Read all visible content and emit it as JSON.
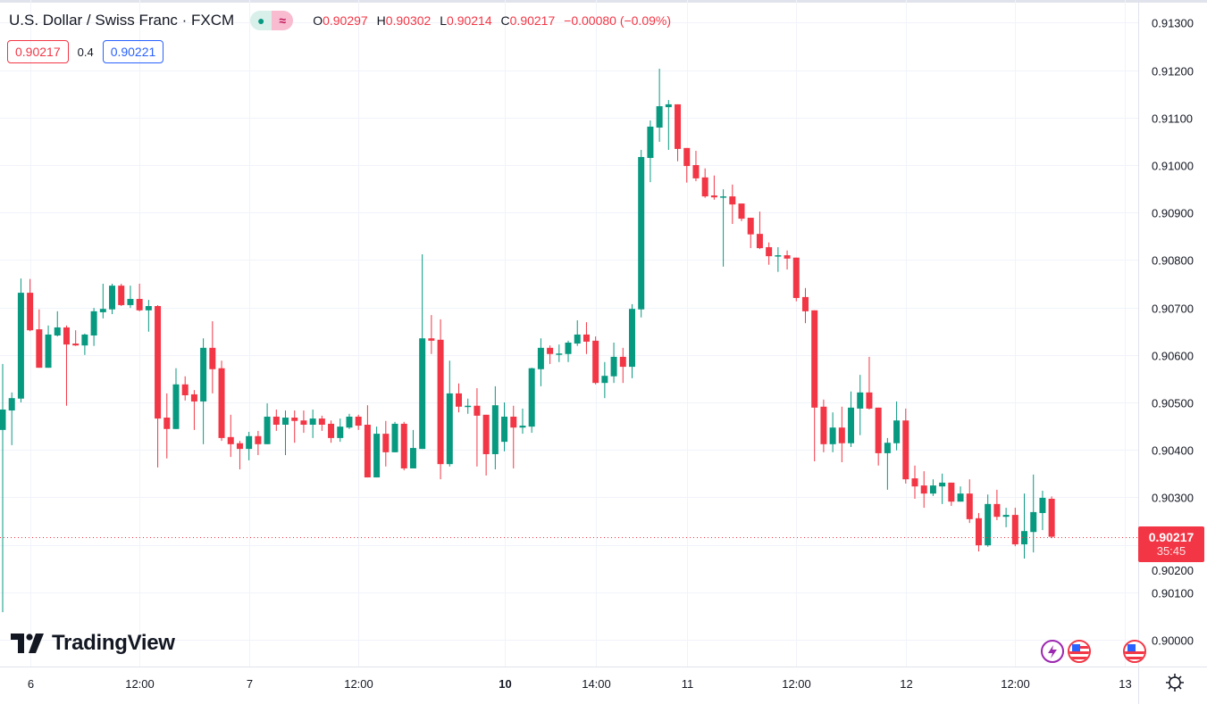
{
  "header": {
    "title": "U.S. Dollar / Swiss Franc · FXCM",
    "pill_left_icon": "market-open-dot-icon",
    "pill_right_icon": "approx-icon",
    "pill_right_glyph": "≈",
    "ohlc": {
      "o_label": "O",
      "o": "0.90297",
      "h_label": "H",
      "h": "0.90302",
      "l_label": "L",
      "l": "0.90214",
      "c_label": "C",
      "c": "0.90217",
      "change": "−0.00080 (−0.09%)"
    },
    "sell_price": "0.90217",
    "spread": "0.4",
    "buy_price": "0.90221"
  },
  "logo": {
    "text": "TradingView"
  },
  "price_label": {
    "price": "0.90217",
    "countdown": "35:45"
  },
  "colors": {
    "up": "#089981",
    "down": "#F23645",
    "grid": "#f0f3fa"
  },
  "chart_data": {
    "type": "candlestick",
    "symbol": "USDCHF",
    "ylim": [
      0.8995,
      0.9135
    ],
    "y_ticks": [
      "0.91300",
      "0.91200",
      "0.91100",
      "0.91000",
      "0.90900",
      "0.90800",
      "0.90700",
      "0.90600",
      "0.90500",
      "0.90400",
      "0.90300",
      "0.90200",
      "0.90100",
      "0.90000"
    ],
    "x_ticks": [
      {
        "label": "6",
        "index": 3,
        "bold": false
      },
      {
        "label": "12:00",
        "index": 15,
        "bold": false
      },
      {
        "label": "7",
        "index": 27,
        "bold": false
      },
      {
        "label": "12:00",
        "index": 39,
        "bold": false
      },
      {
        "label": "10",
        "index": 55,
        "bold": true
      },
      {
        "label": "14:00",
        "index": 65,
        "bold": false
      },
      {
        "label": "11",
        "index": 75,
        "bold": false
      },
      {
        "label": "12:00",
        "index": 87,
        "bold": false
      },
      {
        "label": "12",
        "index": 99,
        "bold": false
      },
      {
        "label": "12:00",
        "index": 111,
        "bold": false
      },
      {
        "label": "13",
        "index": 123,
        "bold": false
      }
    ],
    "last_price": 0.90217,
    "ohlc": [
      [
        0.90442,
        0.90581,
        0.90058,
        0.90485
      ],
      [
        0.90483,
        0.90521,
        0.9041,
        0.90509
      ],
      [
        0.90508,
        0.90761,
        0.905,
        0.90731
      ],
      [
        0.90731,
        0.9076,
        0.9065,
        0.90652
      ],
      [
        0.90654,
        0.90696,
        0.90573,
        0.90573
      ],
      [
        0.90573,
        0.90662,
        0.90573,
        0.90643
      ],
      [
        0.90641,
        0.90692,
        0.90639,
        0.90658
      ],
      [
        0.90658,
        0.90662,
        0.90493,
        0.90622
      ],
      [
        0.90624,
        0.90652,
        0.90619,
        0.9062
      ],
      [
        0.9062,
        0.90645,
        0.906,
        0.90643
      ],
      [
        0.90641,
        0.90699,
        0.90619,
        0.90692
      ],
      [
        0.9069,
        0.9075,
        0.90677,
        0.90697
      ],
      [
        0.90696,
        0.9075,
        0.90686,
        0.90746
      ],
      [
        0.90746,
        0.9075,
        0.90703,
        0.90705
      ],
      [
        0.90705,
        0.90746,
        0.90699,
        0.90718
      ],
      [
        0.90718,
        0.9075,
        0.90692,
        0.90694
      ],
      [
        0.90694,
        0.90716,
        0.90649,
        0.90703
      ],
      [
        0.90703,
        0.90705,
        0.90363,
        0.90466
      ],
      [
        0.90468,
        0.90519,
        0.90382,
        0.90444
      ],
      [
        0.90444,
        0.90572,
        0.90444,
        0.90538
      ],
      [
        0.90538,
        0.90555,
        0.90504,
        0.90515
      ],
      [
        0.90517,
        0.90526,
        0.90442,
        0.90502
      ],
      [
        0.90502,
        0.90635,
        0.90412,
        0.90615
      ],
      [
        0.90615,
        0.90671,
        0.90519,
        0.9057
      ],
      [
        0.90572,
        0.90588,
        0.90419,
        0.90425
      ],
      [
        0.90427,
        0.90474,
        0.90385,
        0.90412
      ],
      [
        0.90414,
        0.90419,
        0.90359,
        0.90402
      ],
      [
        0.90402,
        0.90438,
        0.90378,
        0.90429
      ],
      [
        0.90429,
        0.9044,
        0.90389,
        0.90412
      ],
      [
        0.90412,
        0.90498,
        0.90412,
        0.9047
      ],
      [
        0.9047,
        0.90485,
        0.9044,
        0.90453
      ],
      [
        0.90453,
        0.90483,
        0.90389,
        0.90468
      ],
      [
        0.90468,
        0.90483,
        0.90415,
        0.90461
      ],
      [
        0.90462,
        0.90483,
        0.90436,
        0.90453
      ],
      [
        0.90453,
        0.90485,
        0.90425,
        0.90466
      ],
      [
        0.90466,
        0.90472,
        0.9044,
        0.90453
      ],
      [
        0.90455,
        0.90462,
        0.90415,
        0.90425
      ],
      [
        0.90425,
        0.90466,
        0.90417,
        0.90449
      ],
      [
        0.90447,
        0.90476,
        0.90444,
        0.9047
      ],
      [
        0.9047,
        0.90474,
        0.90442,
        0.90451
      ],
      [
        0.90453,
        0.90494,
        0.90342,
        0.90342
      ],
      [
        0.90342,
        0.90449,
        0.90342,
        0.90434
      ],
      [
        0.90434,
        0.90461,
        0.90365,
        0.90395
      ],
      [
        0.90395,
        0.90459,
        0.90395,
        0.90455
      ],
      [
        0.90455,
        0.90459,
        0.90357,
        0.90361
      ],
      [
        0.90361,
        0.90442,
        0.90361,
        0.90404
      ],
      [
        0.90402,
        0.90812,
        0.90402,
        0.90635
      ],
      [
        0.90635,
        0.90684,
        0.90602,
        0.9063
      ],
      [
        0.90632,
        0.90675,
        0.90338,
        0.9037
      ],
      [
        0.9037,
        0.90588,
        0.90365,
        0.90519
      ],
      [
        0.90519,
        0.9054,
        0.90479,
        0.90491
      ],
      [
        0.90491,
        0.90508,
        0.90476,
        0.90493
      ],
      [
        0.90493,
        0.9053,
        0.90365,
        0.90472
      ],
      [
        0.90474,
        0.90474,
        0.90346,
        0.90391
      ],
      [
        0.90391,
        0.90534,
        0.90359,
        0.90494
      ],
      [
        0.90417,
        0.905,
        0.90397,
        0.9047
      ],
      [
        0.9047,
        0.90493,
        0.90361,
        0.90447
      ],
      [
        0.90447,
        0.90487,
        0.90434,
        0.90451
      ],
      [
        0.90449,
        0.90573,
        0.90436,
        0.90572
      ],
      [
        0.9057,
        0.90635,
        0.90534,
        0.90615
      ],
      [
        0.90615,
        0.9062,
        0.90581,
        0.90602
      ],
      [
        0.90602,
        0.90622,
        0.90585,
        0.90603
      ],
      [
        0.90602,
        0.9063,
        0.90585,
        0.90626
      ],
      [
        0.90624,
        0.90673,
        0.90619,
        0.90643
      ],
      [
        0.90643,
        0.90669,
        0.90602,
        0.90628
      ],
      [
        0.9063,
        0.90639,
        0.90538,
        0.90541
      ],
      [
        0.90541,
        0.90585,
        0.90509,
        0.90556
      ],
      [
        0.90555,
        0.90626,
        0.90541,
        0.90596
      ],
      [
        0.90596,
        0.90615,
        0.90541,
        0.90575
      ],
      [
        0.90575,
        0.90707,
        0.90551,
        0.90697
      ],
      [
        0.90696,
        0.91032,
        0.90679,
        0.91017
      ],
      [
        0.91015,
        0.91094,
        0.90964,
        0.91081
      ],
      [
        0.91079,
        0.91203,
        0.91049,
        0.91124
      ],
      [
        0.91122,
        0.91137,
        0.91032,
        0.91128
      ],
      [
        0.91128,
        0.91128,
        0.91008,
        0.91034
      ],
      [
        0.91036,
        0.91036,
        0.90963,
        0.90998
      ],
      [
        0.91,
        0.9103,
        0.90966,
        0.90972
      ],
      [
        0.90974,
        0.90993,
        0.90931,
        0.90934
      ],
      [
        0.90936,
        0.90978,
        0.90927,
        0.90932
      ],
      [
        0.90932,
        0.90949,
        0.90786,
        0.90934
      ],
      [
        0.90934,
        0.90959,
        0.90876,
        0.90917
      ],
      [
        0.90919,
        0.90919,
        0.90882,
        0.90887
      ],
      [
        0.90889,
        0.90889,
        0.90825,
        0.90854
      ],
      [
        0.90855,
        0.90902,
        0.90823,
        0.90825
      ],
      [
        0.90827,
        0.90837,
        0.9079,
        0.90808
      ],
      [
        0.90808,
        0.90827,
        0.90775,
        0.9081
      ],
      [
        0.9081,
        0.9082,
        0.9078,
        0.90803
      ],
      [
        0.90805,
        0.90805,
        0.90713,
        0.9072
      ],
      [
        0.90722,
        0.90741,
        0.90667,
        0.90692
      ],
      [
        0.90694,
        0.90694,
        0.90376,
        0.90489
      ],
      [
        0.90491,
        0.90506,
        0.90395,
        0.90412
      ],
      [
        0.90412,
        0.90479,
        0.90395,
        0.90447
      ],
      [
        0.90447,
        0.90491,
        0.90374,
        0.90414
      ],
      [
        0.90414,
        0.90523,
        0.90406,
        0.90489
      ],
      [
        0.90487,
        0.90558,
        0.90431,
        0.90521
      ],
      [
        0.90521,
        0.90596,
        0.90485,
        0.90487
      ],
      [
        0.90489,
        0.90489,
        0.90367,
        0.90393
      ],
      [
        0.90393,
        0.90425,
        0.90316,
        0.90415
      ],
      [
        0.90414,
        0.90502,
        0.90399,
        0.90462
      ],
      [
        0.90462,
        0.90487,
        0.90329,
        0.90338
      ],
      [
        0.9034,
        0.90367,
        0.90297,
        0.90323
      ],
      [
        0.90325,
        0.90355,
        0.90278,
        0.90308
      ],
      [
        0.90308,
        0.90338,
        0.90303,
        0.90325
      ],
      [
        0.90323,
        0.9035,
        0.90286,
        0.90331
      ],
      [
        0.90331,
        0.90331,
        0.90282,
        0.90291
      ],
      [
        0.90291,
        0.90323,
        0.90291,
        0.90308
      ],
      [
        0.90308,
        0.90338,
        0.90246,
        0.90254
      ],
      [
        0.90256,
        0.90267,
        0.90186,
        0.90199
      ],
      [
        0.90199,
        0.90306,
        0.90196,
        0.90286
      ],
      [
        0.90286,
        0.90316,
        0.90252,
        0.90259
      ],
      [
        0.90259,
        0.90278,
        0.90237,
        0.90263
      ],
      [
        0.90263,
        0.90278,
        0.90197,
        0.90201
      ],
      [
        0.90201,
        0.90308,
        0.90171,
        0.90229
      ],
      [
        0.90227,
        0.90348,
        0.90184,
        0.90269
      ],
      [
        0.90267,
        0.90314,
        0.90231,
        0.90299
      ],
      [
        0.90297,
        0.90302,
        0.90214,
        0.90217
      ]
    ]
  }
}
